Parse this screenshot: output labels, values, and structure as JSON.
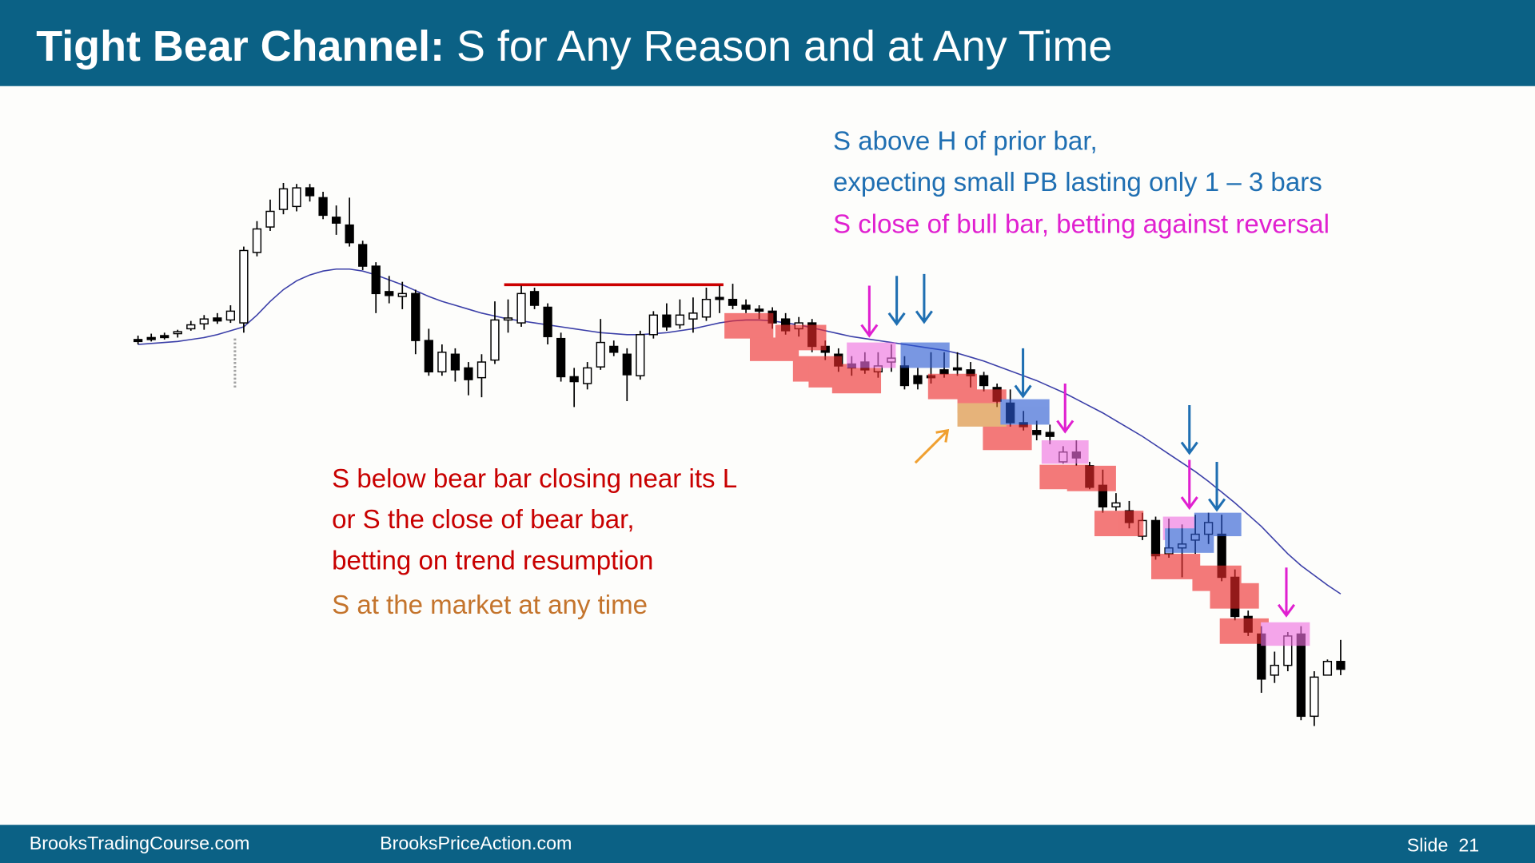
{
  "header": {
    "title_bold": "Tight Bear Channel:",
    "title_rest": " S for Any Reason and at Any Time"
  },
  "annotations": [
    {
      "text": "S above H of prior bar,",
      "color": "#1f6fb2"
    },
    {
      "text": "expecting small PB lasting only 1 – 3 bars",
      "color": "#1f6fb2"
    },
    {
      "text": "S close of bull bar, betting against reversal",
      "color": "#e020d0"
    },
    {
      "text": "S below bear bar closing near its L",
      "color": "#c80000"
    },
    {
      "text": "or S the close of bear bar,",
      "color": "#c80000"
    },
    {
      "text": "betting on trend resumption",
      "color": "#c80000"
    },
    {
      "text": "S at the market at any time",
      "color": "#c4742c"
    }
  ],
  "footer": {
    "left": "BrooksTradingCourse.com",
    "middle": "BrooksPriceAction.com",
    "slide": "Slide  21"
  },
  "chart_data": {
    "type": "candlestick",
    "ylim": [
      0,
      320
    ],
    "up_color": "#ffffff",
    "down_color": "#000000",
    "ma_color": "#3b3fa8",
    "level": {
      "value": 254.5,
      "from": 28,
      "to": 44,
      "color": "#cc0000"
    },
    "open": [
      226.5,
      227.5,
      228.5,
      229.5,
      232,
      234.5,
      237.5,
      236.5,
      235,
      271,
      284,
      293,
      294.5,
      304,
      299,
      289,
      285,
      275,
      264,
      251,
      248.5,
      250,
      226,
      210,
      219,
      212,
      207,
      216,
      236.5,
      235,
      251,
      243,
      227,
      207.5,
      204,
      212.5,
      223,
      219,
      208,
      229,
      239,
      234,
      237,
      238,
      248,
      247,
      244,
      242,
      241,
      237,
      232,
      235,
      223,
      219,
      214,
      215,
      210,
      215,
      213,
      208,
      208,
      211,
      212,
      211,
      208,
      202,
      194,
      184,
      180,
      179,
      164,
      169,
      162,
      152,
      141,
      139,
      126,
      134,
      117,
      120,
      124,
      127,
      127,
      105,
      85,
      76,
      55,
      60,
      76,
      34,
      55,
      62
    ],
    "high": [
      228.5,
      229.5,
      230,
      231.5,
      236,
      239,
      240,
      244,
      274,
      287,
      298,
      306.5,
      306,
      306,
      302,
      295,
      299,
      277,
      266,
      259,
      256,
      252,
      232,
      224,
      222,
      215,
      219,
      246,
      247,
      254,
      253,
      245,
      230,
      212,
      215,
      237,
      226,
      222,
      231,
      241,
      245,
      247,
      248,
      253,
      254,
      255,
      247,
      244,
      243,
      240,
      238,
      237,
      226,
      222,
      218,
      220,
      220,
      224,
      218,
      212,
      220,
      220,
      220,
      215,
      210,
      204,
      201,
      190,
      185,
      183,
      172,
      175,
      164,
      160,
      148,
      144,
      138,
      136,
      135,
      132,
      137,
      138,
      137,
      109,
      88,
      80,
      67,
      77,
      80,
      57,
      63,
      73
    ],
    "low": [
      224,
      225.5,
      226.5,
      227.5,
      231,
      231.5,
      234.5,
      235,
      230,
      269,
      282,
      290.5,
      292,
      297,
      288,
      280,
      274,
      262,
      240,
      245,
      242,
      219,
      208,
      208,
      205,
      198,
      197,
      214,
      230,
      233,
      242,
      224,
      205,
      192,
      201,
      211,
      218,
      195,
      206,
      227,
      231,
      232,
      230,
      236,
      240,
      242,
      240,
      237,
      232,
      229,
      228,
      220,
      216,
      210,
      208,
      209,
      207,
      210,
      201,
      201,
      204,
      207,
      208,
      202,
      200,
      192,
      182,
      180,
      175,
      173,
      163,
      162,
      150,
      138,
      139,
      130,
      124,
      114,
      115,
      105,
      117,
      122,
      103,
      83,
      75,
      46,
      51,
      57,
      32,
      29,
      55,
      55
    ],
    "close": [
      225.5,
      226.5,
      228,
      230.5,
      234,
      237,
      236,
      241,
      272,
      283,
      292,
      303.5,
      304,
      300,
      290,
      286,
      276,
      264,
      250,
      249,
      250,
      226,
      210,
      220,
      211,
      206,
      215,
      236.5,
      237.5,
      250,
      244,
      228,
      207.5,
      205,
      212,
      225,
      220,
      208.5,
      229,
      239,
      233,
      239,
      240,
      247,
      247,
      244,
      242,
      241,
      235,
      231,
      235,
      223,
      220,
      213,
      212,
      211,
      213,
      217,
      203,
      204,
      207,
      209,
      211,
      208,
      203,
      195,
      184,
      182,
      178,
      177,
      169,
      166,
      151,
      141,
      143,
      133,
      134,
      116,
      120,
      122,
      127,
      133,
      105,
      85,
      77,
      53,
      60,
      75,
      34,
      54,
      62,
      58
    ],
    "ma": [
      224,
      224.5,
      225,
      225.5,
      226.5,
      227.5,
      229,
      231,
      233,
      239,
      246,
      252,
      256.5,
      259.5,
      261.5,
      262.5,
      262.5,
      261.5,
      259.5,
      257,
      254.5,
      251.5,
      248.5,
      246,
      244,
      242,
      240,
      238.5,
      237,
      236,
      235,
      234,
      233,
      232,
      231,
      230,
      229.5,
      229,
      229,
      229.5,
      230,
      231,
      232,
      233.5,
      235,
      236,
      236.5,
      236.5,
      236,
      235,
      234,
      232.5,
      231,
      229.5,
      228,
      227,
      226,
      225,
      224,
      223,
      222,
      221,
      219.5,
      217.5,
      215.5,
      213,
      210.5,
      208,
      205.5,
      202.5,
      199.5,
      196,
      192.5,
      189,
      185,
      181,
      177,
      172.5,
      168,
      163.5,
      159,
      154,
      148.5,
      143,
      137,
      131,
      124,
      117,
      111,
      106,
      101,
      96.5
    ]
  }
}
